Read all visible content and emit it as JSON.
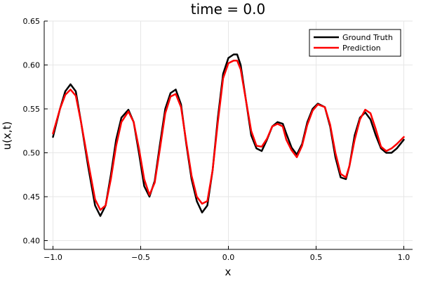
{
  "chart_data": {
    "type": "line",
    "title": "time = 0.0",
    "xlabel": "x",
    "ylabel": "u(x,t)",
    "xlim": [
      -1.05,
      1.05
    ],
    "ylim": [
      0.39,
      0.65
    ],
    "xticks": [
      -1.0,
      -0.5,
      0.0,
      0.5,
      1.0
    ],
    "xtick_labels": [
      "−1.0",
      "−0.5",
      "0.0",
      "0.5",
      "1.0"
    ],
    "yticks": [
      0.4,
      0.45,
      0.5,
      0.55,
      0.6,
      0.65
    ],
    "ytick_labels": [
      "0.40",
      "0.45",
      "0.50",
      "0.55",
      "0.60",
      "0.65"
    ],
    "grid": true,
    "legend_position": "top-right",
    "series": [
      {
        "name": "Ground Truth",
        "color": "#000000",
        "x": [
          -1.0,
          -0.96,
          -0.93,
          -0.9,
          -0.87,
          -0.84,
          -0.8,
          -0.76,
          -0.73,
          -0.7,
          -0.67,
          -0.64,
          -0.61,
          -0.57,
          -0.54,
          -0.51,
          -0.48,
          -0.45,
          -0.42,
          -0.39,
          -0.36,
          -0.33,
          -0.3,
          -0.27,
          -0.24,
          -0.21,
          -0.18,
          -0.15,
          -0.12,
          -0.09,
          -0.06,
          -0.03,
          0.0,
          0.03,
          0.05,
          0.07,
          0.1,
          0.13,
          0.16,
          0.19,
          0.22,
          0.25,
          0.28,
          0.31,
          0.33,
          0.36,
          0.39,
          0.42,
          0.45,
          0.48,
          0.51,
          0.55,
          0.58,
          0.61,
          0.64,
          0.67,
          0.69,
          0.72,
          0.75,
          0.78,
          0.81,
          0.84,
          0.87,
          0.9,
          0.93,
          0.96,
          1.0
        ],
        "y": [
          0.518,
          0.55,
          0.57,
          0.578,
          0.57,
          0.535,
          0.485,
          0.44,
          0.428,
          0.44,
          0.475,
          0.515,
          0.54,
          0.549,
          0.535,
          0.5,
          0.462,
          0.45,
          0.468,
          0.51,
          0.55,
          0.568,
          0.572,
          0.555,
          0.51,
          0.47,
          0.445,
          0.432,
          0.44,
          0.48,
          0.54,
          0.59,
          0.608,
          0.612,
          0.612,
          0.6,
          0.56,
          0.52,
          0.505,
          0.502,
          0.515,
          0.53,
          0.535,
          0.533,
          0.522,
          0.506,
          0.498,
          0.51,
          0.535,
          0.55,
          0.556,
          0.552,
          0.53,
          0.495,
          0.472,
          0.47,
          0.485,
          0.52,
          0.54,
          0.546,
          0.538,
          0.52,
          0.505,
          0.5,
          0.5,
          0.505,
          0.515
        ]
      },
      {
        "name": "Prediction",
        "color": "#ff0000",
        "x": [
          -1.0,
          -0.96,
          -0.93,
          -0.9,
          -0.87,
          -0.84,
          -0.8,
          -0.76,
          -0.73,
          -0.7,
          -0.67,
          -0.64,
          -0.61,
          -0.57,
          -0.54,
          -0.51,
          -0.48,
          -0.45,
          -0.42,
          -0.39,
          -0.36,
          -0.33,
          -0.3,
          -0.27,
          -0.24,
          -0.21,
          -0.18,
          -0.15,
          -0.12,
          -0.09,
          -0.06,
          -0.03,
          0.0,
          0.03,
          0.05,
          0.07,
          0.1,
          0.13,
          0.16,
          0.19,
          0.22,
          0.25,
          0.28,
          0.31,
          0.33,
          0.36,
          0.39,
          0.42,
          0.45,
          0.48,
          0.51,
          0.55,
          0.58,
          0.61,
          0.64,
          0.67,
          0.69,
          0.72,
          0.75,
          0.78,
          0.81,
          0.84,
          0.87,
          0.9,
          0.93,
          0.96,
          1.0
        ],
        "y": [
          0.522,
          0.55,
          0.566,
          0.572,
          0.565,
          0.535,
          0.49,
          0.447,
          0.435,
          0.44,
          0.47,
          0.508,
          0.535,
          0.547,
          0.535,
          0.505,
          0.47,
          0.452,
          0.466,
          0.505,
          0.545,
          0.564,
          0.567,
          0.552,
          0.512,
          0.474,
          0.45,
          0.442,
          0.445,
          0.48,
          0.535,
          0.585,
          0.602,
          0.605,
          0.605,
          0.595,
          0.56,
          0.525,
          0.508,
          0.507,
          0.516,
          0.53,
          0.533,
          0.53,
          0.515,
          0.503,
          0.495,
          0.508,
          0.532,
          0.548,
          0.555,
          0.552,
          0.532,
          0.5,
          0.476,
          0.472,
          0.485,
          0.515,
          0.538,
          0.549,
          0.545,
          0.527,
          0.507,
          0.502,
          0.505,
          0.51,
          0.518
        ]
      }
    ]
  }
}
